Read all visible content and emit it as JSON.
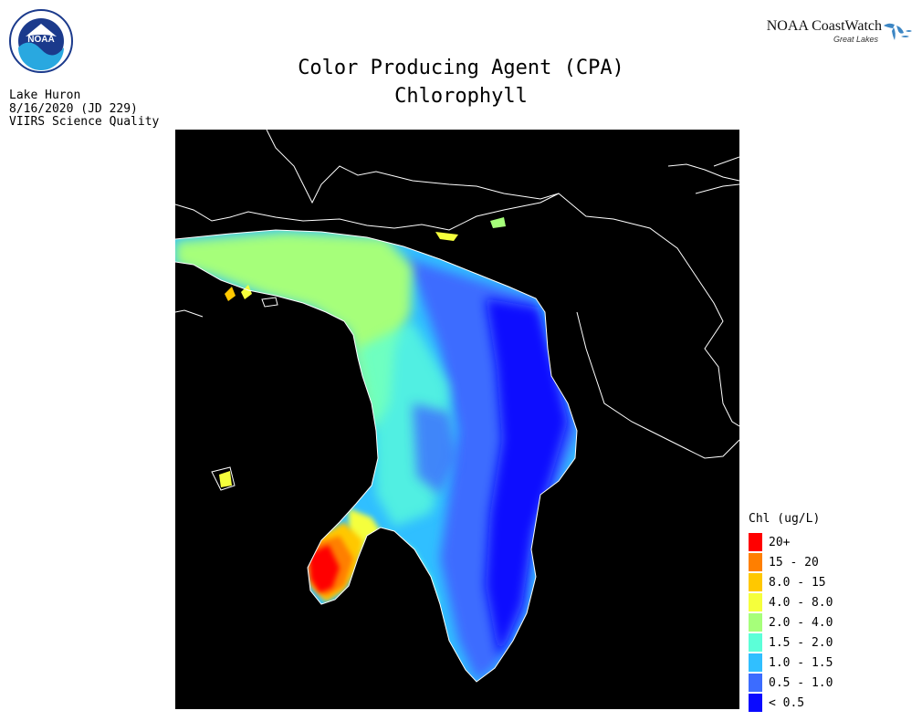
{
  "header": {
    "title_line1": "Color Producing Agent (CPA)",
    "title_line2": "Chlorophyll",
    "lake": "Lake Huron",
    "date": "8/16/2020 (JD 229)",
    "quality": "VIIRS Science Quality"
  },
  "branding": {
    "noaa_logo": "noaa-logo",
    "coastwatch_name": "NOAA CoastWatch",
    "coastwatch_sub": "Great Lakes"
  },
  "map": {
    "background_color": "#000000",
    "coastline_color": "#ffffff",
    "features": [
      "Lake Huron",
      "Georgian Bay",
      "Saginaw Bay"
    ]
  },
  "legend": {
    "title": "Chl (ug/L)",
    "items": [
      {
        "label": "20+",
        "color": "#ff0000"
      },
      {
        "label": "15 - 20",
        "color": "#ff7f00"
      },
      {
        "label": "8.0 - 15",
        "color": "#ffc800"
      },
      {
        "label": "4.0 - 8.0",
        "color": "#f5ff3c"
      },
      {
        "label": "2.0 - 4.0",
        "color": "#a6ff7a"
      },
      {
        "label": "1.5 - 2.0",
        "color": "#5cffd8"
      },
      {
        "label": "1.0 - 1.5",
        "color": "#30bfff"
      },
      {
        "label": "0.5 - 1.0",
        "color": "#3c6cff"
      },
      {
        "label": "< 0.5",
        "color": "#0a0aff"
      }
    ]
  }
}
